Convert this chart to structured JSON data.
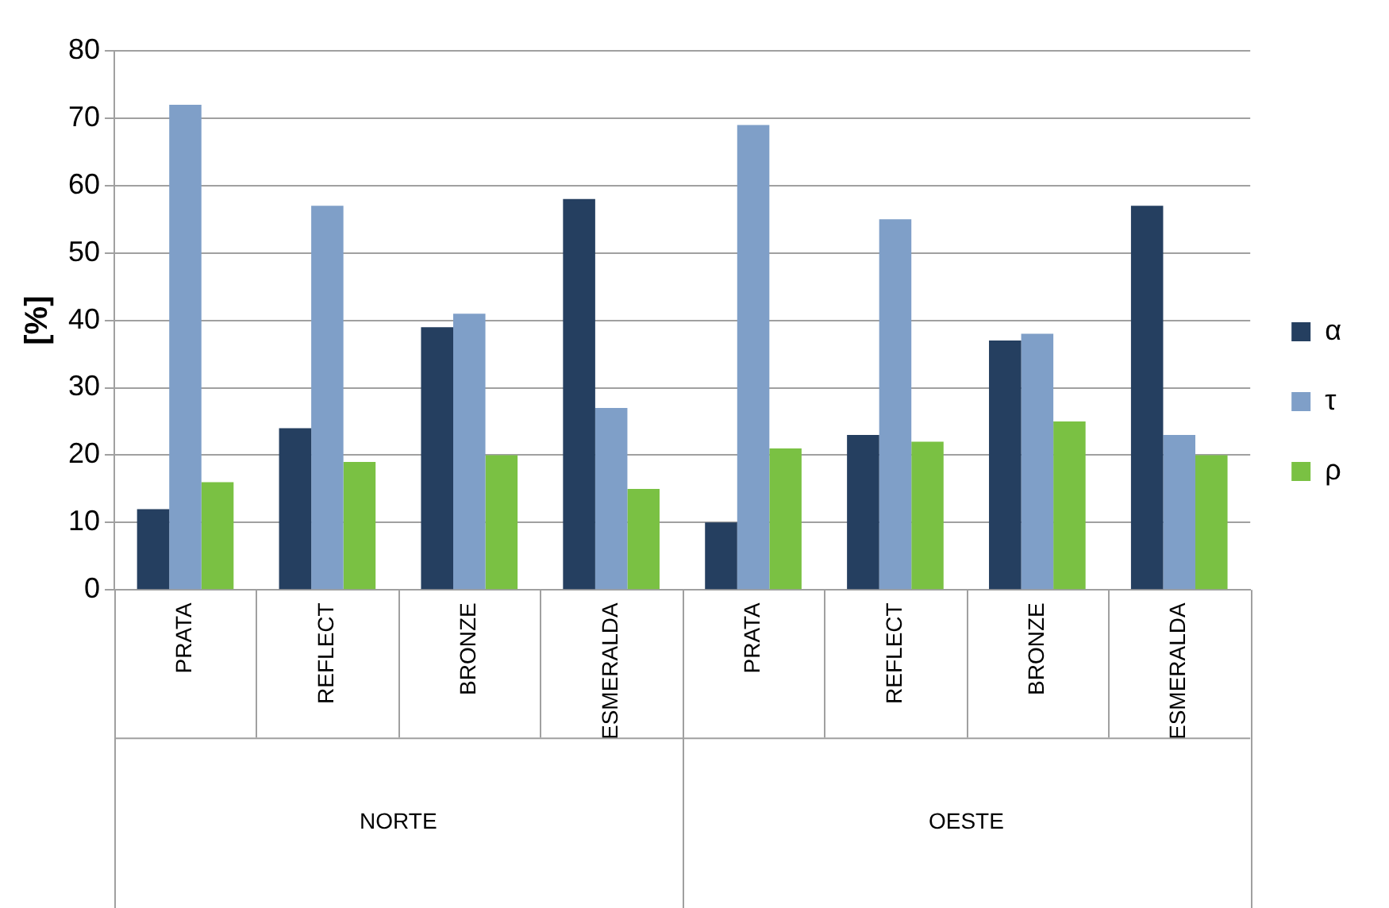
{
  "chart_data": {
    "type": "bar",
    "ylabel": "[%]",
    "categories": [
      "PRATA",
      "REFLECT",
      "BRONZE",
      "ESMERALDA",
      "PRATA",
      "REFLECT",
      "BRONZE",
      "ESMERALDA"
    ],
    "series": [
      {
        "name": "α",
        "color": "#253f60",
        "values": [
          12,
          24,
          39,
          58,
          10,
          23,
          37,
          57
        ]
      },
      {
        "name": "τ",
        "color": "#7f9fc8",
        "values": [
          72,
          57,
          41,
          27,
          69,
          55,
          38,
          23
        ]
      },
      {
        "name": "ρ",
        "color": "#7ac143",
        "values": [
          16,
          19,
          20,
          15,
          21,
          22,
          25,
          20
        ]
      }
    ],
    "annotations": [
      "NORTE",
      "OESTE"
    ],
    "ylim": [
      0,
      80
    ],
    "yticks": [
      0,
      10,
      20,
      30,
      40,
      50,
      60,
      70,
      80
    ],
    "grid": "y",
    "legend": "right"
  }
}
